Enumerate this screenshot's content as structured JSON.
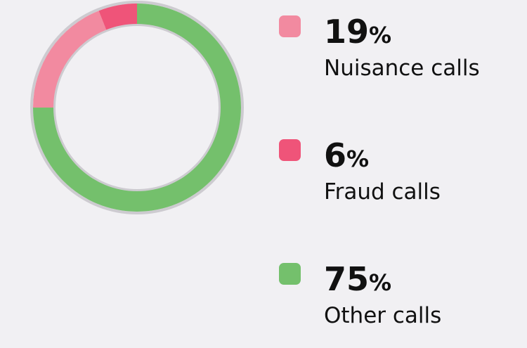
{
  "chart_data": {
    "type": "pie",
    "categories": [
      "Nuisance calls",
      "Fraud calls",
      "Other calls"
    ],
    "values": [
      19,
      6,
      75
    ],
    "value_labels": [
      "19%",
      "6%",
      "75%"
    ],
    "colors": [
      "#f28aa0",
      "#ef5479",
      "#74c06c"
    ]
  }
}
